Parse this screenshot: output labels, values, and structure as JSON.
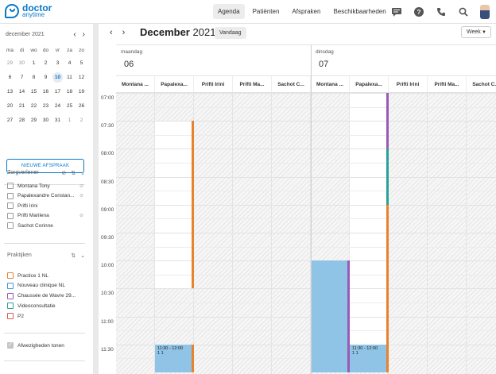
{
  "brand": {
    "line1": "doctor",
    "line2": "anytime"
  },
  "nav": {
    "items": [
      {
        "label": "Agenda",
        "active": true
      },
      {
        "label": "Patiënten",
        "active": false
      },
      {
        "label": "Afspraken",
        "active": false
      },
      {
        "label": "Beschikbaarheden",
        "active": false
      }
    ]
  },
  "toolbar_icons": [
    "chat-icon",
    "help-icon",
    "phone-icon",
    "search-icon",
    "avatar"
  ],
  "mini_calendar": {
    "month_label": "december 2021",
    "weekdays": [
      "ma",
      "di",
      "wo",
      "do",
      "vr",
      "za",
      "zo"
    ],
    "weeks": [
      [
        "29",
        "30",
        "1",
        "2",
        "3",
        "4",
        "5"
      ],
      [
        "6",
        "7",
        "8",
        "9",
        "10",
        "11",
        "12"
      ],
      [
        "13",
        "14",
        "15",
        "16",
        "17",
        "18",
        "19"
      ],
      [
        "20",
        "21",
        "22",
        "23",
        "24",
        "25",
        "26"
      ],
      [
        "27",
        "28",
        "29",
        "30",
        "31",
        "1",
        "2"
      ]
    ],
    "today": "10"
  },
  "new_appointment_label": "NIEUWE AFSPRAAK",
  "providers": {
    "title": "Zorgverlener",
    "items": [
      "Montana Tony",
      "Papalexandre Constan...",
      "Prifti Irini",
      "Prifti Marilena",
      "Sachot Corinne"
    ]
  },
  "practices": {
    "title": "Praktijken",
    "items": [
      {
        "label": "Practice 1 NL",
        "color": "#e8822f"
      },
      {
        "label": "Nouveau clinique NL",
        "color": "#3a9ad9"
      },
      {
        "label": "Chaussée de Wavre 29...",
        "color": "#9b59b6"
      },
      {
        "label": "Videoconsultatie",
        "color": "#2aa198"
      },
      {
        "label": "P2",
        "color": "#e05a4f"
      }
    ]
  },
  "absences_label": "Afwezigheden tonen",
  "calendar": {
    "month": "December",
    "year": "2021",
    "today_label": "Vandaag",
    "view_label": "Week",
    "days": [
      {
        "name": "maandag",
        "num": "06"
      },
      {
        "name": "dinsdag",
        "num": "07"
      }
    ],
    "resources": [
      "Montana ...",
      "Papalexa...",
      "Prifti Irini",
      "Prifti Ma...",
      "Sachot C...",
      "Montana ...",
      "Papalexa...",
      "Prifti Irini",
      "Prifti Ma...",
      "Sachot C..."
    ],
    "times": [
      "07:00",
      "07:30",
      "08:00",
      "08:30",
      "09:00",
      "09:30",
      "10:00",
      "10:30",
      "11:00",
      "11:30"
    ],
    "appointments": [
      {
        "time": "11:30 - 12:00",
        "detail": "1 1"
      },
      {
        "time": "11:30 - 12:00",
        "detail": "1 1"
      }
    ]
  },
  "colors": {
    "accent": "#0a78c8",
    "appointment": "#8fc4e6",
    "orange": "#e8822f",
    "purple": "#9b59b6",
    "teal": "#2aa198"
  }
}
